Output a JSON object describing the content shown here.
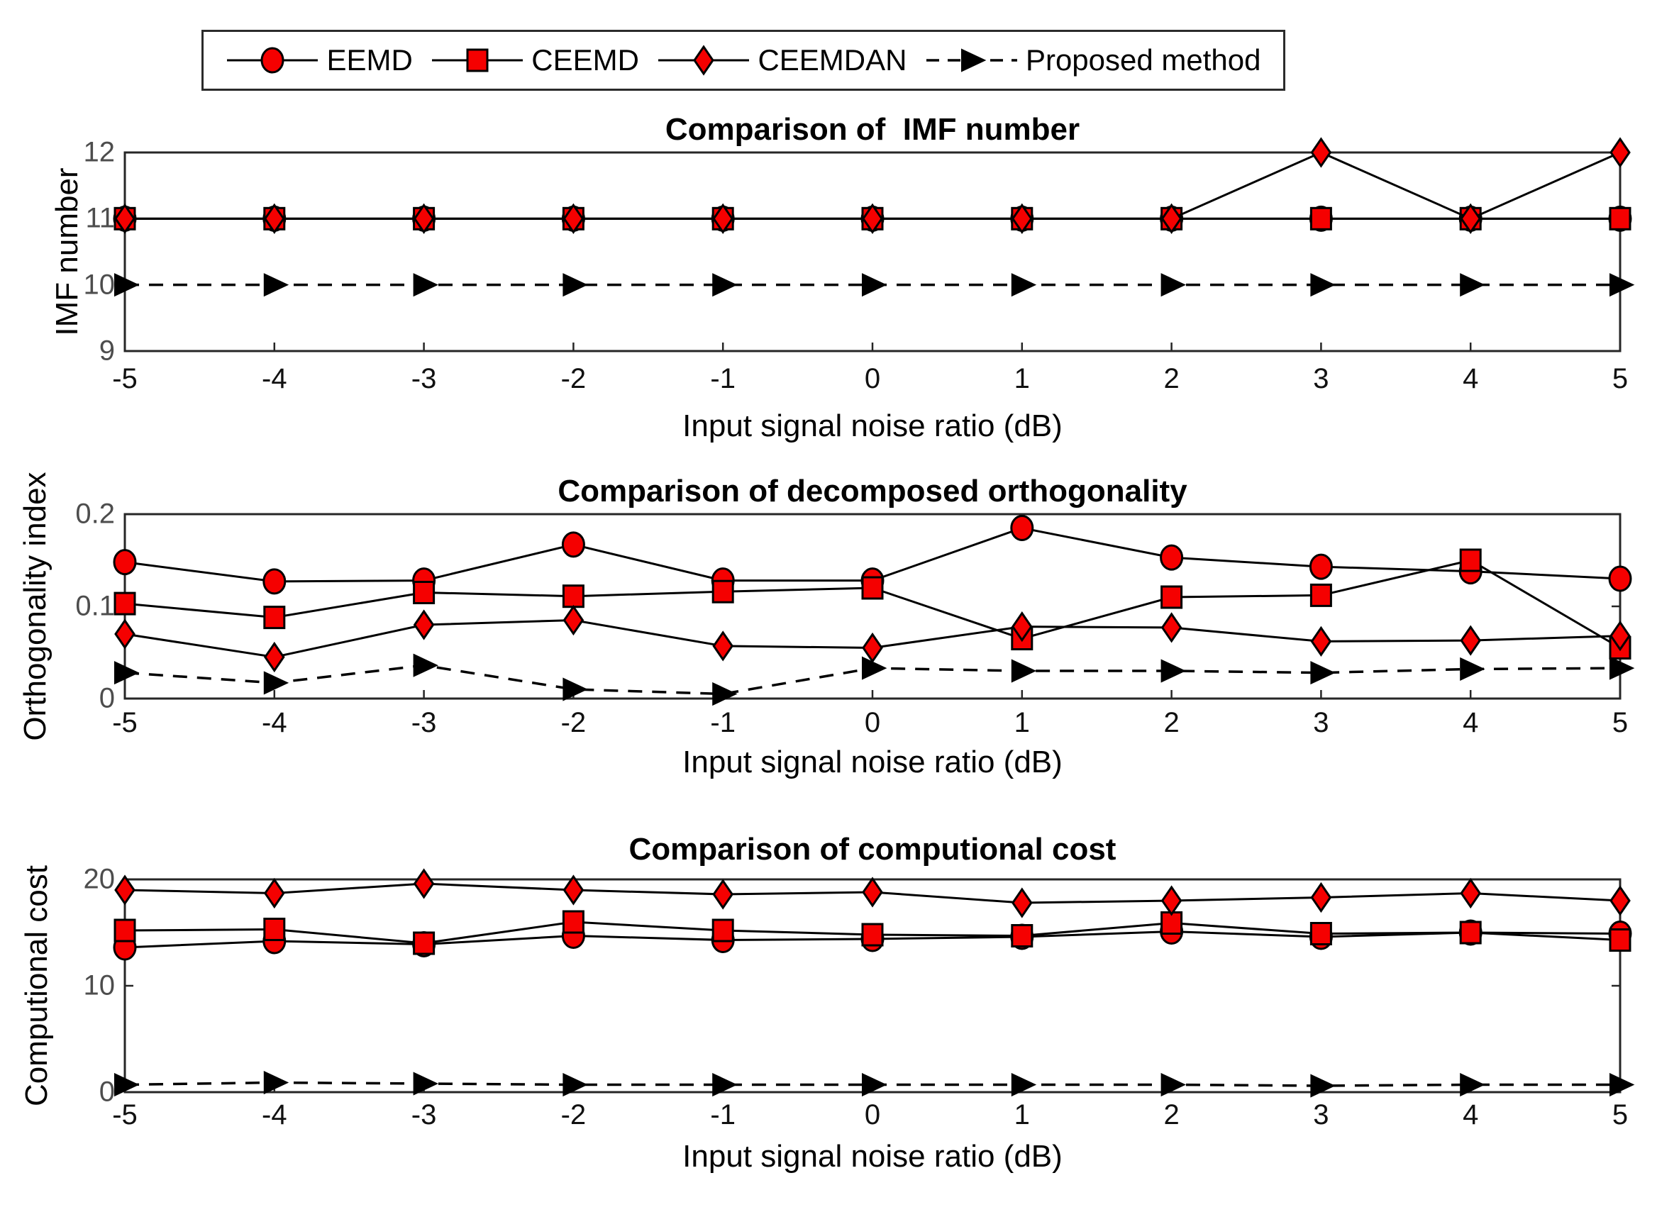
{
  "colors": {
    "marker_red": "#f50000",
    "marker_edge": "#000000",
    "line_black": "#000000",
    "axis_box": "#262626",
    "y_tick_text": "#4d4d4d",
    "x_tick_text": "#111111",
    "background": "#ffffff"
  },
  "legend": {
    "items": [
      {
        "label": "EEMD",
        "marker": "circle",
        "line": "solid",
        "marker_color": "#f50000"
      },
      {
        "label": "CEEMD",
        "marker": "square",
        "line": "solid",
        "marker_color": "#f50000"
      },
      {
        "label": "CEEMDAN",
        "marker": "diamond",
        "line": "solid",
        "marker_color": "#f50000"
      },
      {
        "label": "Proposed method",
        "marker": "triangle-right",
        "line": "dashed",
        "marker_color": "#000000"
      }
    ],
    "position": "top-center, horizontal, boxed"
  },
  "chart_data": [
    {
      "type": "line",
      "title": "Comparison of  IMF number",
      "xlabel": "Input signal noise ratio (dB)",
      "ylabel": "IMF number",
      "xlim": [
        -5,
        5
      ],
      "ylim": [
        9,
        12
      ],
      "xticks": [
        "-5",
        "-4",
        "-3",
        "-2",
        "-1",
        "0",
        "1",
        "2",
        "3",
        "4",
        "5"
      ],
      "yticks": [
        "9",
        "10",
        "11",
        "12"
      ],
      "grid": false,
      "x": [
        -5,
        -4,
        -3,
        -2,
        -1,
        0,
        1,
        2,
        3,
        4,
        5
      ],
      "series": [
        {
          "name": "EEMD",
          "marker": "circle",
          "line": "solid",
          "color": "#f50000",
          "values": [
            11,
            11,
            11,
            11,
            11,
            11,
            11,
            11,
            11,
            11,
            11
          ]
        },
        {
          "name": "CEEMD",
          "marker": "square",
          "line": "solid",
          "color": "#f50000",
          "values": [
            11,
            11,
            11,
            11,
            11,
            11,
            11,
            11,
            11,
            11,
            11
          ]
        },
        {
          "name": "CEEMDAN",
          "marker": "diamond",
          "line": "solid",
          "color": "#f50000",
          "values": [
            11,
            11,
            11,
            11,
            11,
            11,
            11,
            11,
            12,
            11,
            12
          ]
        },
        {
          "name": "Proposed method",
          "marker": "triangle-right",
          "line": "dashed",
          "color": "#000000",
          "values": [
            10,
            10,
            10,
            10,
            10,
            10,
            10,
            10,
            10,
            10,
            10
          ]
        }
      ]
    },
    {
      "type": "line",
      "title": "Comparison of decomposed orthogonality",
      "xlabel": "Input signal noise ratio (dB)",
      "ylabel": "Orthogonality index",
      "xlim": [
        -5,
        5
      ],
      "ylim": [
        0,
        0.2
      ],
      "xticks": [
        "-5",
        "-4",
        "-3",
        "-2",
        "-1",
        "0",
        "1",
        "2",
        "3",
        "4",
        "5"
      ],
      "yticks": [
        "0",
        "0.1",
        "0.2"
      ],
      "grid": false,
      "x": [
        -5,
        -4,
        -3,
        -2,
        -1,
        0,
        1,
        2,
        3,
        4,
        5
      ],
      "series": [
        {
          "name": "EEMD",
          "marker": "circle",
          "line": "solid",
          "color": "#f50000",
          "values": [
            0.148,
            0.127,
            0.128,
            0.167,
            0.128,
            0.128,
            0.185,
            0.153,
            0.143,
            0.138,
            0.13
          ]
        },
        {
          "name": "CEEMD",
          "marker": "square",
          "line": "solid",
          "color": "#f50000",
          "values": [
            0.103,
            0.088,
            0.115,
            0.111,
            0.116,
            0.12,
            0.065,
            0.11,
            0.112,
            0.15,
            0.055
          ]
        },
        {
          "name": "CEEMDAN",
          "marker": "diamond",
          "line": "solid",
          "color": "#f50000",
          "values": [
            0.07,
            0.045,
            0.08,
            0.085,
            0.057,
            0.055,
            0.078,
            0.077,
            0.062,
            0.063,
            0.068
          ]
        },
        {
          "name": "Proposed method",
          "marker": "triangle-right",
          "line": "dashed",
          "color": "#000000",
          "values": [
            0.028,
            0.017,
            0.036,
            0.01,
            0.005,
            0.033,
            0.03,
            0.03,
            0.028,
            0.032,
            0.033
          ]
        }
      ]
    },
    {
      "type": "line",
      "title": "Comparison of computional cost",
      "xlabel": "Input signal noise ratio (dB)",
      "ylabel": "Computional cost",
      "xlim": [
        -5,
        5
      ],
      "ylim": [
        0,
        20
      ],
      "xticks": [
        "-5",
        "-4",
        "-3",
        "-2",
        "-1",
        "0",
        "1",
        "2",
        "3",
        "4",
        "5"
      ],
      "yticks": [
        "0",
        "10",
        "20"
      ],
      "grid": false,
      "x": [
        -5,
        -4,
        -3,
        -2,
        -1,
        0,
        1,
        2,
        3,
        4,
        5
      ],
      "series": [
        {
          "name": "EEMD",
          "marker": "circle",
          "line": "solid",
          "color": "#f50000",
          "values": [
            13.6,
            14.2,
            13.9,
            14.7,
            14.3,
            14.4,
            14.6,
            15.1,
            14.6,
            15.0,
            14.9
          ]
        },
        {
          "name": "CEEMD",
          "marker": "square",
          "line": "solid",
          "color": "#f50000",
          "values": [
            15.2,
            15.3,
            14.0,
            16.0,
            15.2,
            14.8,
            14.7,
            15.9,
            14.9,
            15.0,
            14.3
          ]
        },
        {
          "name": "CEEMDAN",
          "marker": "diamond",
          "line": "solid",
          "color": "#f50000",
          "values": [
            19.0,
            18.7,
            19.6,
            19.0,
            18.6,
            18.8,
            17.8,
            18.0,
            18.3,
            18.7,
            18.0
          ]
        },
        {
          "name": "Proposed method",
          "marker": "triangle-right",
          "line": "dashed",
          "color": "#000000",
          "values": [
            0.7,
            0.9,
            0.8,
            0.7,
            0.7,
            0.7,
            0.7,
            0.7,
            0.6,
            0.7,
            0.7
          ]
        }
      ]
    }
  ]
}
